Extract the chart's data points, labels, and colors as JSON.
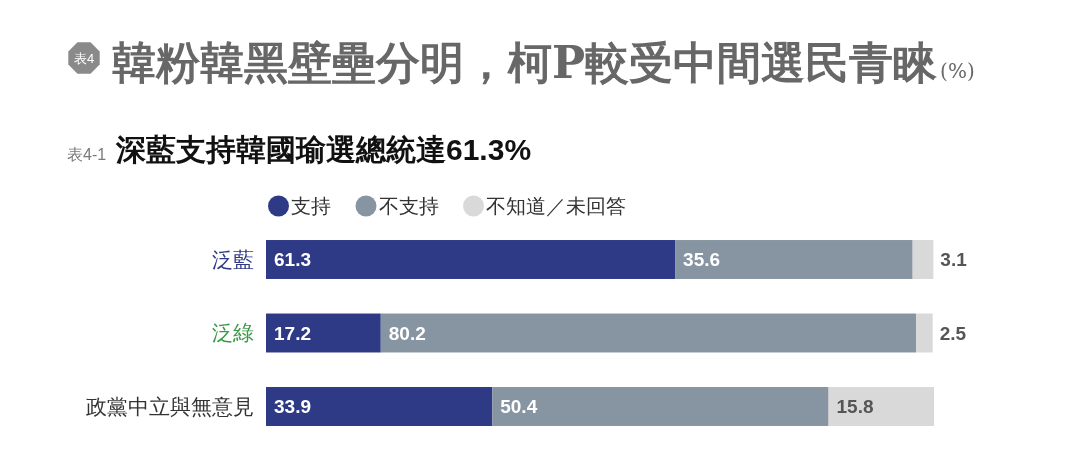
{
  "chart_data": {
    "type": "bar",
    "orientation": "horizontal",
    "stacked": true,
    "title": "韓粉韓黑壁壘分明，柯P較受中間選民青睞(%)",
    "subtitle": "深藍支持韓國瑜選總統達61.3%",
    "annotations": [
      "表4",
      "表4-1"
    ],
    "categories": [
      "泛藍",
      "泛綠",
      "政黨中立與無意見"
    ],
    "series": [
      {
        "name": "支持",
        "color": "#2e3a86",
        "values": [
          61.3,
          17.2,
          33.9
        ]
      },
      {
        "name": "不支持",
        "color": "#8795a3",
        "values": [
          35.6,
          80.2,
          50.4
        ]
      },
      {
        "name": "不知道／未回答",
        "color": "#d9d9d9",
        "values": [
          3.1,
          2.5,
          15.8
        ]
      }
    ],
    "data_labels": true,
    "legend": "top left"
  }
}
